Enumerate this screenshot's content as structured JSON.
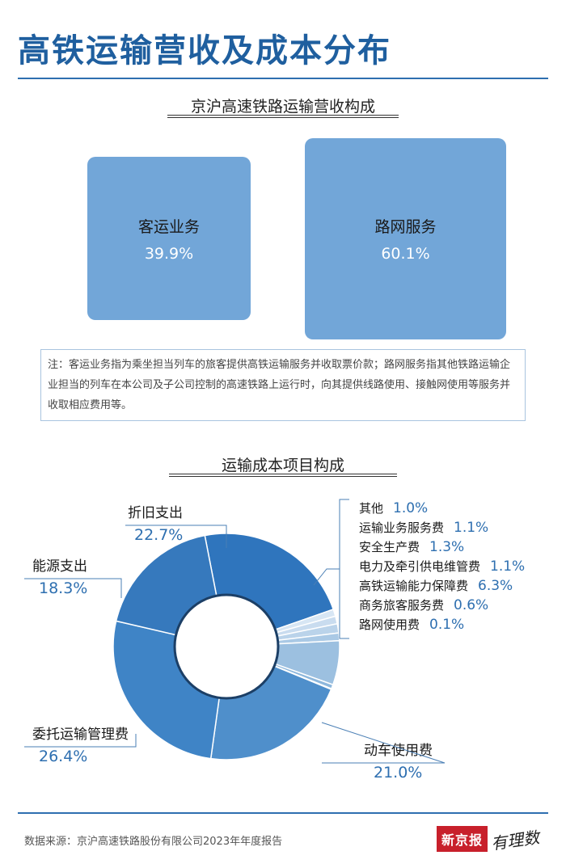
{
  "page": {
    "title": "高铁运输营收及成本分布",
    "source": "数据来源：京沪高速铁路股份有限公司2023年年度报告",
    "logo_text": "新京报",
    "logo_script": "有理数"
  },
  "colors": {
    "brand": "#1f5f9f",
    "box": "#72a6d8",
    "value_text": "#2e6fb0",
    "rule": "#2e6fb0"
  },
  "revenue": {
    "section_title": "京沪高速铁路运输营收构成",
    "note": "注：客运业务指为乘坐担当列车的旅客提供高铁运输服务并收取票价款；路网服务指其他铁路运输企业担当的列车在本公司及子公司控制的高速铁路上运行时，向其提供线路使用、接触网使用等服务并收取相应费用等。"
  },
  "cost": {
    "section_title": "运输成本项目构成"
  },
  "chart_data": [
    {
      "type": "treemap",
      "title": "京沪高速铁路运输营收构成",
      "categories": [
        "客运业务",
        "路网服务"
      ],
      "values": [
        39.9,
        60.1
      ],
      "labels": [
        "39.9%",
        "60.1%"
      ]
    },
    {
      "type": "pie",
      "title": "运输成本项目构成",
      "donut": true,
      "categories": [
        "折旧支出",
        "其他",
        "运输业务服务费",
        "安全生产费",
        "电力及牵引供电维管费",
        "高铁运输能力保障费",
        "商务旅客服务费",
        "路网使用费",
        "动车使用费",
        "委托运输管理费",
        "能源支出"
      ],
      "values": [
        22.7,
        1.0,
        1.1,
        1.3,
        1.1,
        6.3,
        0.6,
        0.1,
        21.0,
        26.4,
        18.3
      ],
      "labels": [
        "22.7%",
        "1.0%",
        "1.1%",
        "1.3%",
        "1.1%",
        "6.3%",
        "0.6%",
        "0.1%",
        "21.0%",
        "26.4%",
        "18.3%"
      ],
      "colors": [
        "#2f75bd",
        "#d7e6f4",
        "#c9dcef",
        "#bad3ea",
        "#aac9e5",
        "#9cc0e0",
        "#8db7dc",
        "#80aed7",
        "#4f8fcb",
        "#3f84c6",
        "#3679bd"
      ]
    }
  ]
}
